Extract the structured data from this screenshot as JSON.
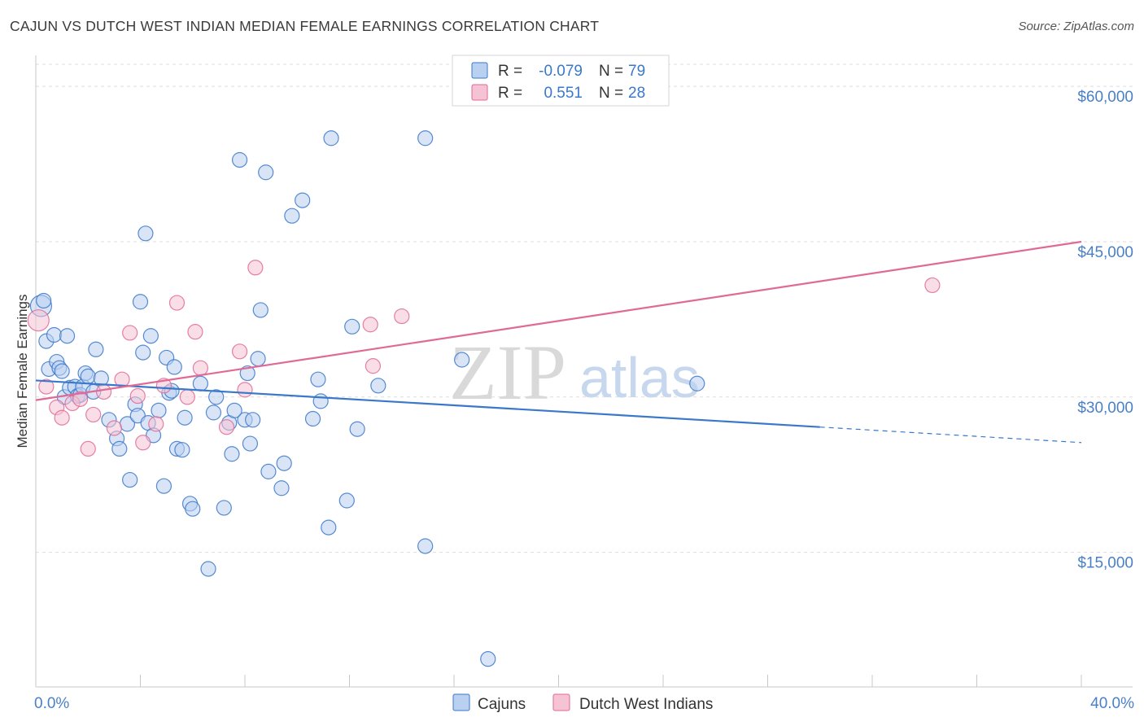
{
  "header": {
    "title": "CAJUN VS DUTCH WEST INDIAN MEDIAN FEMALE EARNINGS CORRELATION CHART",
    "source": "Source: ZipAtlas.com"
  },
  "watermark": {
    "zip": "ZIP",
    "atlas": "atlas"
  },
  "colors": {
    "blue": "#3a78c9",
    "blue_fill": "#b9d0f0",
    "pink": "#e06a96",
    "pink_fill": "#f6c3d4",
    "grid": "#dddddd",
    "tick_text": "#4a80c8"
  },
  "legend": {
    "rows": [
      {
        "r_label": "R =",
        "r_value": "-0.079",
        "n_label": "N =",
        "n_value": "79"
      },
      {
        "r_label": "R =",
        "r_value": "0.551",
        "n_label": "N =",
        "n_value": "28"
      }
    ]
  },
  "bottom_legend": {
    "series1": "Cajuns",
    "series2": "Dutch West Indians"
  },
  "chart_data": {
    "type": "scatter",
    "ylabel": "Median Female Earnings",
    "xlim": [
      0,
      40
    ],
    "ylim": [
      2000,
      63000
    ],
    "x_tick_labels": [
      "0.0%",
      "40.0%"
    ],
    "y_ticks": [
      15000,
      30000,
      45000,
      60000
    ],
    "y_tick_labels": [
      "$15,000",
      "$30,000",
      "$45,000",
      "$60,000"
    ],
    "grid": true,
    "series": [
      {
        "name": "Cajuns",
        "color": "#3a78c9",
        "trend": {
          "x0": 0,
          "y0": 31600,
          "x1": 30,
          "y1": 27100,
          "dash_x1": 40,
          "dash_y1": 25600
        },
        "points": [
          [
            0.2,
            38800
          ],
          [
            0.4,
            35400
          ],
          [
            0.5,
            32700
          ],
          [
            0.7,
            36000
          ],
          [
            0.8,
            33400
          ],
          [
            0.9,
            32800
          ],
          [
            1.1,
            30000
          ],
          [
            1.2,
            35900
          ],
          [
            1.3,
            30900
          ],
          [
            1.5,
            31000
          ],
          [
            1.6,
            30100
          ],
          [
            1.7,
            30200
          ],
          [
            1.8,
            31000
          ],
          [
            1.9,
            32300
          ],
          [
            2.0,
            32000
          ],
          [
            2.2,
            30500
          ],
          [
            2.3,
            34600
          ],
          [
            2.8,
            27800
          ],
          [
            3.1,
            26000
          ],
          [
            3.2,
            25000
          ],
          [
            3.5,
            27400
          ],
          [
            3.6,
            22000
          ],
          [
            3.8,
            29300
          ],
          [
            3.9,
            28200
          ],
          [
            4.0,
            39200
          ],
          [
            4.1,
            34300
          ],
          [
            4.2,
            45800
          ],
          [
            4.3,
            27500
          ],
          [
            4.4,
            35900
          ],
          [
            4.5,
            26300
          ],
          [
            4.7,
            28700
          ],
          [
            4.9,
            21400
          ],
          [
            5.0,
            33800
          ],
          [
            5.1,
            30400
          ],
          [
            5.3,
            32900
          ],
          [
            5.4,
            25000
          ],
          [
            5.6,
            24900
          ],
          [
            5.7,
            28000
          ],
          [
            5.9,
            19700
          ],
          [
            6.0,
            19200
          ],
          [
            6.3,
            31300
          ],
          [
            6.6,
            13400
          ],
          [
            6.8,
            28500
          ],
          [
            6.9,
            30000
          ],
          [
            7.2,
            19300
          ],
          [
            7.4,
            27500
          ],
          [
            7.5,
            24500
          ],
          [
            7.8,
            52900
          ],
          [
            8.0,
            27800
          ],
          [
            8.1,
            32300
          ],
          [
            8.2,
            25500
          ],
          [
            8.3,
            27800
          ],
          [
            8.5,
            33700
          ],
          [
            8.6,
            38400
          ],
          [
            8.8,
            51700
          ],
          [
            8.9,
            22800
          ],
          [
            9.4,
            21200
          ],
          [
            9.5,
            23600
          ],
          [
            9.8,
            47500
          ],
          [
            10.2,
            49000
          ],
          [
            10.6,
            27900
          ],
          [
            10.8,
            31700
          ],
          [
            10.9,
            29600
          ],
          [
            11.2,
            17400
          ],
          [
            11.3,
            55000
          ],
          [
            11.9,
            20000
          ],
          [
            12.1,
            36800
          ],
          [
            12.3,
            26900
          ],
          [
            13.1,
            31100
          ],
          [
            14.9,
            55000
          ],
          [
            14.9,
            15600
          ],
          [
            16.3,
            33600
          ],
          [
            17.3,
            4700
          ],
          [
            25.3,
            31300
          ],
          [
            0.3,
            39300
          ],
          [
            1.0,
            32500
          ],
          [
            2.5,
            31800
          ],
          [
            5.2,
            30600
          ],
          [
            7.6,
            28700
          ]
        ]
      },
      {
        "name": "Dutch West Indians",
        "color": "#e06a96",
        "trend": {
          "x0": 0,
          "y0": 29700,
          "x1": 40,
          "y1": 45000
        },
        "points": [
          [
            0.1,
            37400
          ],
          [
            0.4,
            31000
          ],
          [
            0.8,
            29000
          ],
          [
            1.0,
            28000
          ],
          [
            1.4,
            29400
          ],
          [
            1.7,
            29800
          ],
          [
            2.0,
            25000
          ],
          [
            2.2,
            28300
          ],
          [
            2.6,
            30500
          ],
          [
            3.0,
            27000
          ],
          [
            3.3,
            31700
          ],
          [
            3.6,
            36200
          ],
          [
            3.9,
            30100
          ],
          [
            4.1,
            25600
          ],
          [
            4.6,
            27400
          ],
          [
            4.9,
            31100
          ],
          [
            5.4,
            39100
          ],
          [
            5.8,
            30000
          ],
          [
            6.1,
            36300
          ],
          [
            6.3,
            32800
          ],
          [
            7.3,
            27100
          ],
          [
            7.8,
            34400
          ],
          [
            8.0,
            30700
          ],
          [
            8.4,
            42500
          ],
          [
            12.8,
            37000
          ],
          [
            12.9,
            33000
          ],
          [
            14.0,
            37800
          ],
          [
            34.3,
            40800
          ]
        ]
      }
    ]
  }
}
